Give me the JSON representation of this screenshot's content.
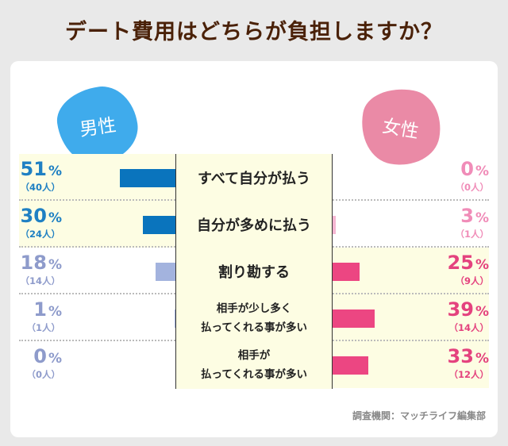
{
  "title": "デート費用はどちらが負担しますか？",
  "groups": {
    "male": "男性",
    "female": "女性"
  },
  "source": "調査機関：マッチライフ編集部",
  "chart_data": {
    "type": "bar",
    "orientation": "horizontal-diverging",
    "categories": [
      [
        "すべて自分が払う"
      ],
      [
        "自分が多めに払う"
      ],
      [
        "割り勘する"
      ],
      [
        "相手が少し多く",
        "払ってくれる事が多い"
      ],
      [
        "相手が",
        "払ってくれる事が多い"
      ]
    ],
    "series": [
      {
        "name": "男性",
        "values": [
          51,
          30,
          18,
          1,
          0
        ],
        "counts": [
          "（40人）",
          "（24人）",
          "（14人）",
          "（1人）",
          "（0人）"
        ],
        "highlight": [
          true,
          true,
          false,
          false,
          false
        ]
      },
      {
        "name": "女性",
        "values": [
          0,
          3,
          25,
          39,
          33
        ],
        "counts": [
          "（0人）",
          "（1人）",
          "（9人）",
          "（14人）",
          "（12人）"
        ],
        "highlight": [
          false,
          false,
          true,
          true,
          true
        ]
      }
    ],
    "unit": "%",
    "colors": {
      "male_strong": "#0a74bd",
      "male_weak": "#a3b3de",
      "male_text_strong": "#1f80c3",
      "male_text_weak": "#8e9bcb",
      "female_strong": "#ec4682",
      "female_weak": "#f5b6d2",
      "female_text_strong": "#e4427e",
      "female_text_weak": "#f08cb8",
      "highlight": "#fdfde3"
    }
  }
}
